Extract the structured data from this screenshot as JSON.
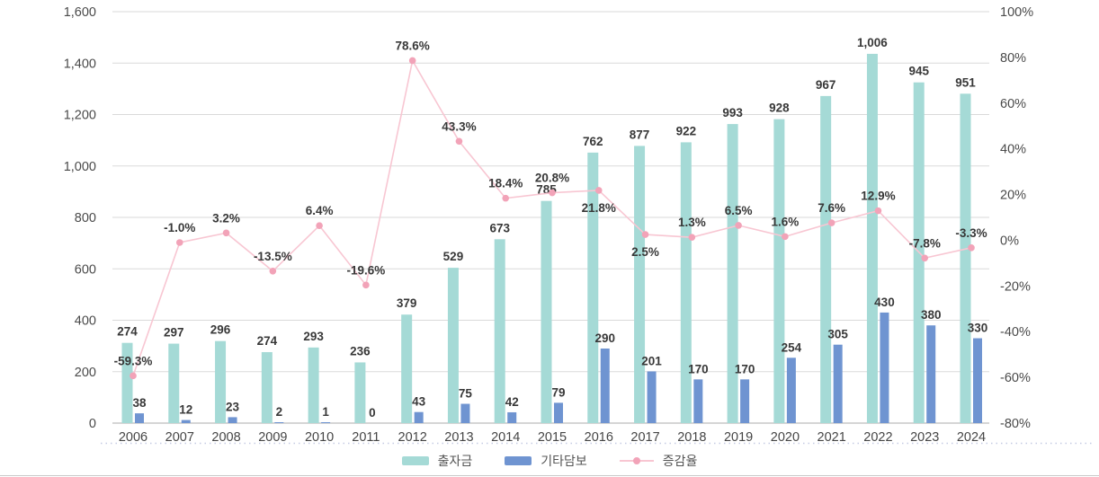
{
  "chart_data": {
    "type": "bar+line",
    "categories": [
      "2006",
      "2007",
      "2008",
      "2009",
      "2010",
      "2011",
      "2012",
      "2013",
      "2014",
      "2015",
      "2016",
      "2017",
      "2018",
      "2019",
      "2020",
      "2021",
      "2022",
      "2023",
      "2024"
    ],
    "series": [
      {
        "name": "출자금",
        "type": "bar",
        "color": "#a5dad6",
        "values": [
          274,
          297,
          296,
          274,
          293,
          236,
          379,
          529,
          673,
          785,
          762,
          877,
          922,
          993,
          928,
          967,
          1006,
          945,
          951
        ],
        "labels": [
          "274",
          "297",
          "296",
          "274",
          "293",
          "236",
          "379",
          "529",
          "673",
          "785",
          "762",
          "877",
          "922",
          "993",
          "928",
          "967",
          "1,006",
          "945",
          "951"
        ]
      },
      {
        "name": "기타담보",
        "type": "bar",
        "color": "#6f94d1",
        "values": [
          38,
          12,
          23,
          2,
          1,
          0,
          43,
          75,
          42,
          79,
          290,
          201,
          170,
          170,
          254,
          305,
          430,
          380,
          330
        ],
        "labels": [
          "38",
          "12",
          "23",
          "2",
          "1",
          "0",
          "43",
          "75",
          "42",
          "79",
          "290",
          "201",
          "170",
          "170",
          "254",
          "305",
          "430",
          "380",
          "330"
        ]
      },
      {
        "name": "증감율",
        "type": "line",
        "axis": "right",
        "color": "#f8c6d2",
        "dot_color": "#f2a3b8",
        "values": [
          -59.3,
          -1.0,
          3.2,
          -13.5,
          6.4,
          -19.6,
          78.6,
          43.3,
          18.4,
          20.8,
          21.8,
          2.5,
          1.3,
          6.5,
          1.6,
          7.6,
          12.9,
          -7.8,
          -3.3
        ],
        "labels": [
          "-59.3%",
          "-1.0%",
          "3.2%",
          "-13.5%",
          "6.4%",
          "-19.6%",
          "78.6%",
          "43.3%",
          "18.4%",
          "20.8%",
          "21.8%",
          "2.5%",
          "1.3%",
          "6.5%",
          "1.6%",
          "7.6%",
          "12.9%",
          "-7.8%",
          "-3.3%"
        ]
      }
    ],
    "left_axis": {
      "max": 1600,
      "min": 0,
      "tick_step": 200,
      "ticks_top_down": [
        "1,600",
        "1,400",
        "1,200",
        "1,000",
        "800",
        "600",
        "400",
        "200",
        "0"
      ]
    },
    "right_axis": {
      "max": 100,
      "min": -80,
      "tick_step": 20,
      "ticks_top_down": [
        "100%",
        "80%",
        "60%",
        "40%",
        "20%",
        "0%",
        "-20%",
        "-40%",
        "-60%",
        "-80%"
      ]
    },
    "legend": {
      "position": "bottom-center",
      "items": [
        "출자금",
        "기타담보",
        "증감율"
      ]
    },
    "layout_hints": {
      "grid": "horizontal-only",
      "gridline_color": "#dadada",
      "baseline_color": "#bcbcbc",
      "bar_render": "teal bar drawn at combined height of both bar series (stacked look), blue bar beside it",
      "line_labels_below_indices": [
        10,
        11
      ]
    }
  }
}
